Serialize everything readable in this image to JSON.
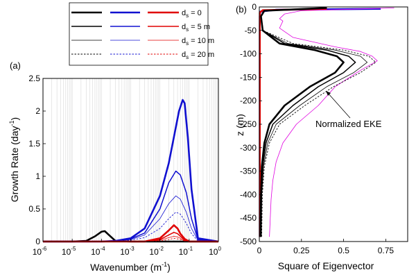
{
  "legend": {
    "columns": [
      "black",
      "blue",
      "red"
    ],
    "rows": [
      {
        "label": "d_s = 0",
        "sub": "s",
        "pre": "d",
        "post": " = 0",
        "style": "thick"
      },
      {
        "label": "d_s = 5 m",
        "sub": "s",
        "pre": "d",
        "post": " = 5 m",
        "style": "medium"
      },
      {
        "label": "d_s = 10 m",
        "sub": "s",
        "pre": "d",
        "post": " = 10 m",
        "style": "thin"
      },
      {
        "label": "d_s = 20 m",
        "sub": "s",
        "pre": "d",
        "post": " = 20 m",
        "style": "dotted"
      }
    ]
  },
  "colors": {
    "black": "#000000",
    "blue": "#1010d0",
    "red": "#e00000",
    "magenta": "#e000e0",
    "grid": "#d8d8d8"
  },
  "chart_data": [
    {
      "type": "line",
      "panel_label": "(a)",
      "xlabel": "Wavenumber (m",
      "xlabel_sup": "-1",
      "xlabel_tail": ")",
      "ylabel": "Growth Rate (day",
      "ylabel_sup": "-1",
      "ylabel_tail": ")",
      "xscale": "log",
      "xlim": [
        1e-06,
        1
      ],
      "ylim": [
        0,
        2.5
      ],
      "yticks": [
        "0",
        "0.5",
        "1",
        "1.5",
        "2",
        "2.5"
      ],
      "xticks": [
        {
          "base": "10",
          "exp": "-6"
        },
        {
          "base": "10",
          "exp": "-5"
        },
        {
          "base": "10",
          "exp": "-4"
        },
        {
          "base": "10",
          "exp": "-3"
        },
        {
          "base": "10",
          "exp": "-2"
        },
        {
          "base": "10",
          "exp": "-1"
        },
        {
          "base": "10",
          "exp": "0"
        }
      ],
      "grid": "x-minor",
      "series": [
        {
          "color": "black",
          "style": "thick",
          "x": [
            1e-06,
            1e-05,
            3e-05,
            6e-05,
            0.0001,
            0.00013,
            0.00018,
            0.0003,
            0.001,
            1
          ],
          "y": [
            0,
            0,
            0.01,
            0.08,
            0.15,
            0.16,
            0.1,
            0.01,
            0,
            0
          ]
        },
        {
          "color": "blue",
          "style": "thick",
          "x": [
            1e-06,
            0.0001,
            0.0003,
            0.001,
            0.003,
            0.01,
            0.02,
            0.03,
            0.045,
            0.06,
            0.07,
            0.09,
            0.12,
            0.2,
            1
          ],
          "y": [
            0,
            0,
            0.01,
            0.05,
            0.2,
            0.7,
            1.2,
            1.6,
            2.0,
            2.17,
            2.12,
            1.6,
            0.8,
            0.05,
            0
          ]
        },
        {
          "color": "blue",
          "style": "medium",
          "x": [
            1e-06,
            0.0001,
            0.0003,
            0.001,
            0.003,
            0.01,
            0.02,
            0.035,
            0.05,
            0.08,
            0.12,
            0.2,
            1
          ],
          "y": [
            0,
            0,
            0.01,
            0.04,
            0.13,
            0.5,
            0.9,
            1.08,
            1.02,
            0.75,
            0.35,
            0.03,
            0
          ]
        },
        {
          "color": "blue",
          "style": "thin",
          "x": [
            1e-06,
            0.0001,
            0.0003,
            0.001,
            0.003,
            0.01,
            0.02,
            0.035,
            0.05,
            0.08,
            0.12,
            0.2,
            1
          ],
          "y": [
            0,
            0,
            0.01,
            0.03,
            0.1,
            0.35,
            0.58,
            0.7,
            0.65,
            0.45,
            0.2,
            0.02,
            0
          ]
        },
        {
          "color": "blue",
          "style": "dotted",
          "x": [
            1e-06,
            0.0001,
            0.0003,
            0.001,
            0.003,
            0.01,
            0.02,
            0.035,
            0.05,
            0.08,
            0.12,
            0.2,
            1
          ],
          "y": [
            0,
            0,
            0.005,
            0.02,
            0.06,
            0.2,
            0.35,
            0.45,
            0.42,
            0.28,
            0.12,
            0.01,
            0
          ]
        },
        {
          "color": "red",
          "style": "thick",
          "x": [
            1e-06,
            0.003,
            0.01,
            0.02,
            0.03,
            0.04,
            0.05,
            0.07,
            0.1,
            1
          ],
          "y": [
            0,
            0,
            0.05,
            0.17,
            0.25,
            0.2,
            0.12,
            0.04,
            0,
            0
          ]
        },
        {
          "color": "red",
          "style": "medium",
          "x": [
            1e-06,
            0.003,
            0.01,
            0.02,
            0.03,
            0.04,
            0.05,
            0.07,
            0.1,
            1
          ],
          "y": [
            0,
            0,
            0.03,
            0.1,
            0.14,
            0.12,
            0.08,
            0.02,
            0,
            0
          ]
        },
        {
          "color": "red",
          "style": "thin",
          "x": [
            1e-06,
            0.003,
            0.01,
            0.02,
            0.03,
            0.04,
            0.05,
            0.07,
            0.1,
            1
          ],
          "y": [
            0,
            0,
            0.02,
            0.06,
            0.08,
            0.07,
            0.05,
            0.01,
            0,
            0
          ]
        },
        {
          "color": "red",
          "style": "dotted",
          "x": [
            1e-06,
            0.003,
            0.01,
            0.02,
            0.03,
            0.04,
            0.05,
            0.07,
            0.1,
            1
          ],
          "y": [
            0,
            0,
            0.01,
            0.03,
            0.05,
            0.04,
            0.03,
            0.01,
            0,
            0
          ]
        }
      ]
    },
    {
      "type": "line",
      "panel_label": "(b)",
      "xlabel": "Square of Eigenvector",
      "ylabel": "z (m)",
      "xlim": [
        0,
        0.88
      ],
      "ylim": [
        -500,
        0
      ],
      "xticks": [
        "0",
        "0.25",
        "0.5",
        "0.75"
      ],
      "xtick_values": [
        0,
        0.25,
        0.5,
        0.75
      ],
      "yticks": [
        "0",
        "-50",
        "-100",
        "-150",
        "-200",
        "-250",
        "-300",
        "-350",
        "-400",
        "-450",
        "-500"
      ],
      "ytick_values": [
        0,
        -50,
        -100,
        -150,
        -200,
        -250,
        -300,
        -350,
        -400,
        -450,
        -500
      ],
      "annotation": "Normalized EKE",
      "annotation_target": {
        "x": 0.47,
        "z": -155
      },
      "series": [
        {
          "color": "blue",
          "style": "thick",
          "x": [
            0.72,
            0.1,
            0.005,
            0.003,
            0.003,
            0.003
          ],
          "z": [
            -4,
            -6,
            -10,
            -20,
            -200,
            -490
          ]
        },
        {
          "color": "red",
          "style": "thick",
          "x": [
            0.4,
            0.02,
            0.003,
            0.003
          ],
          "z": [
            -4,
            -7,
            -12,
            -490
          ]
        },
        {
          "color": "magenta",
          "style": "thin",
          "x": [
            0.8,
            0.25,
            0.15,
            0.12,
            0.14,
            0.12,
            0.2,
            0.45,
            0.6,
            0.67,
            0.7,
            0.6,
            0.45,
            0.35,
            0.22,
            0.14,
            0.1,
            0.08,
            0.07,
            0.065,
            0.06
          ],
          "z": [
            -2,
            -8,
            -15,
            -25,
            -30,
            -45,
            -65,
            -85,
            -95,
            -105,
            -115,
            -135,
            -170,
            -210,
            -250,
            -290,
            -330,
            -370,
            -410,
            -450,
            -490
          ]
        },
        {
          "color": "black",
          "style": "thick",
          "x": [
            0.4,
            0.03,
            0.01,
            0.02,
            0.12,
            0.33,
            0.46,
            0.5,
            0.45,
            0.3,
            0.15,
            0.06,
            0.03,
            0.015,
            0.01,
            0.008
          ],
          "z": [
            -2,
            -8,
            -20,
            -50,
            -78,
            -92,
            -105,
            -118,
            -140,
            -170,
            -210,
            -250,
            -290,
            -340,
            -400,
            -490
          ]
        },
        {
          "color": "black",
          "style": "medium",
          "x": [
            0.4,
            0.03,
            0.01,
            0.02,
            0.15,
            0.4,
            0.53,
            0.57,
            0.5,
            0.35,
            0.2,
            0.08,
            0.04,
            0.02,
            0.012,
            0.01
          ],
          "z": [
            -2,
            -8,
            -20,
            -50,
            -78,
            -92,
            -105,
            -118,
            -140,
            -170,
            -210,
            -250,
            -290,
            -340,
            -400,
            -490
          ]
        },
        {
          "color": "black",
          "style": "thin",
          "x": [
            0.4,
            0.03,
            0.01,
            0.02,
            0.17,
            0.45,
            0.6,
            0.64,
            0.56,
            0.4,
            0.24,
            0.1,
            0.05,
            0.025,
            0.015,
            0.012
          ],
          "z": [
            -2,
            -8,
            -20,
            -50,
            -78,
            -92,
            -105,
            -118,
            -140,
            -170,
            -210,
            -250,
            -290,
            -340,
            -400,
            -490
          ]
        },
        {
          "color": "black",
          "style": "dotted",
          "x": [
            0.4,
            0.03,
            0.01,
            0.02,
            0.2,
            0.5,
            0.65,
            0.69,
            0.6,
            0.44,
            0.27,
            0.12,
            0.06,
            0.03,
            0.018,
            0.014
          ],
          "z": [
            -2,
            -8,
            -20,
            -50,
            -78,
            -92,
            -105,
            -118,
            -140,
            -170,
            -210,
            -250,
            -290,
            -340,
            -400,
            -490
          ]
        }
      ]
    }
  ]
}
